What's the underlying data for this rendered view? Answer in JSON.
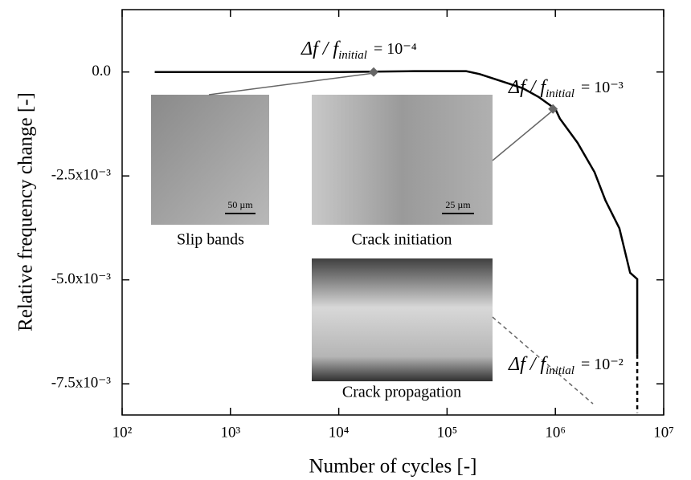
{
  "chart_data": {
    "type": "line",
    "xlabel": "Number of cycles [-]",
    "ylabel": "Relative frequency change [-]",
    "log_x": true,
    "xlim": [
      100,
      10000000
    ],
    "xticks": [
      {
        "value": 100,
        "label": "10²"
      },
      {
        "value": 1000,
        "label": "10³"
      },
      {
        "value": 10000,
        "label": "10⁴"
      },
      {
        "value": 100000,
        "label": "10⁵"
      },
      {
        "value": 1000000,
        "label": "10⁶"
      },
      {
        "value": 10000000,
        "label": "10⁷"
      }
    ],
    "ylim": [
      -0.00825,
      0.0015
    ],
    "yticks": [
      {
        "value": 0,
        "label": "0.0"
      },
      {
        "value": -0.0025,
        "label": "-2.5x10⁻³"
      },
      {
        "value": -0.005,
        "label": "-5.0x10⁻³"
      },
      {
        "value": -0.0075,
        "label": "-7.5x10⁻³"
      }
    ],
    "series": [
      {
        "color": "#000000",
        "x": [
          200,
          1000,
          10000,
          50000,
          150000,
          200000,
          300000,
          500000,
          700000,
          1000000,
          1100000,
          1600000,
          2300000,
          2900000,
          3900000,
          4900000,
          5700000,
          5700000
        ],
        "values": [
          0,
          0,
          0,
          2e-05,
          2e-05,
          -5e-05,
          -0.0002,
          -0.00039,
          -0.0006,
          -0.00089,
          -0.00112,
          -0.0017,
          -0.00241,
          -0.00309,
          -0.00376,
          -0.00483,
          -0.00498,
          -0.0068
        ]
      },
      {
        "color": "#000000",
        "dashed": true,
        "x": [
          5700000,
          5700000
        ],
        "values": [
          -0.0068,
          -0.0082
        ]
      }
    ],
    "markers": {
      "color": "#666666",
      "x": [
        21000,
        950000
      ],
      "values": [
        0,
        -0.00089
      ]
    },
    "annotations": [
      {
        "lhs": "Δf / f",
        "sub": "initial",
        "rhs": "= 10⁻⁴"
      },
      {
        "lhs": "Δf / f",
        "sub": "initial",
        "rhs": "= 10⁻³"
      },
      {
        "lhs": "Δf / f",
        "sub": "initial",
        "rhs": "= 10⁻²"
      }
    ],
    "insets": [
      {
        "caption": "Slip bands",
        "scale": "50 µm"
      },
      {
        "caption": "Crack initiation",
        "scale": "25 µm"
      },
      {
        "caption": "Crack propagation"
      }
    ]
  }
}
